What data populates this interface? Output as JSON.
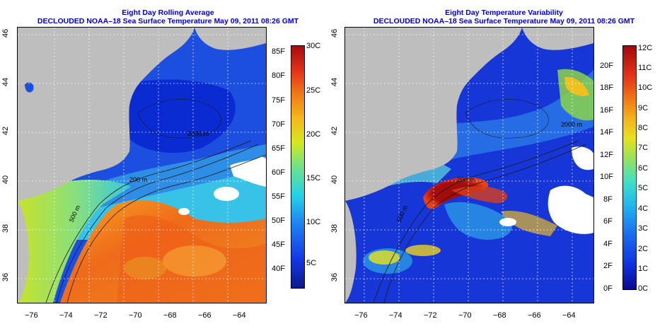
{
  "left": {
    "title_line1": "Eight Day Rolling Average",
    "title_line2": "DECLOUDED NOAA–18 Sea Surface Temperature May 09, 2011 08:26 GMT",
    "x_ticks": [
      "−76",
      "−74",
      "−72",
      "−70",
      "−68",
      "−66",
      "−64"
    ],
    "y_ticks": [
      "36",
      "38",
      "40",
      "42",
      "44",
      "46"
    ],
    "contour_labels": [
      "500 m",
      "200 m",
      "2000 m"
    ],
    "colorbar_f": [
      "40F",
      "45F",
      "50F",
      "55F",
      "60F",
      "65F",
      "70F",
      "75F",
      "80F",
      "85F"
    ],
    "colorbar_c": [
      "5C",
      "10C",
      "15C",
      "20C",
      "25C",
      "30C"
    ]
  },
  "right": {
    "title_line1": "Eight Day Temperature Variability",
    "title_line2": "DECLOUDED NOAA–18 Sea Surface Temperature May 09, 2011 08:26 GMT",
    "x_ticks": [
      "−76",
      "−74",
      "−72",
      "−70",
      "−68",
      "−66",
      "−64"
    ],
    "y_ticks": [
      "36",
      "38",
      "40",
      "42",
      "44",
      "46"
    ],
    "contour_labels": [
      "500 m",
      "200 m",
      "2000 m"
    ],
    "colorbar_f": [
      "0F",
      "2F",
      "4F",
      "6F",
      "8F",
      "10F",
      "12F",
      "14F",
      "16F",
      "18F",
      "20F"
    ],
    "colorbar_c": [
      "0C",
      "1C",
      "2C",
      "3C",
      "4C",
      "5C",
      "6C",
      "7C",
      "8C",
      "9C",
      "10C",
      "11C",
      "12C"
    ]
  },
  "colors": {
    "title": "#0000c8",
    "land": "#bebebe",
    "cold": "#0a2ad6",
    "warm": "#f27b1c"
  }
}
